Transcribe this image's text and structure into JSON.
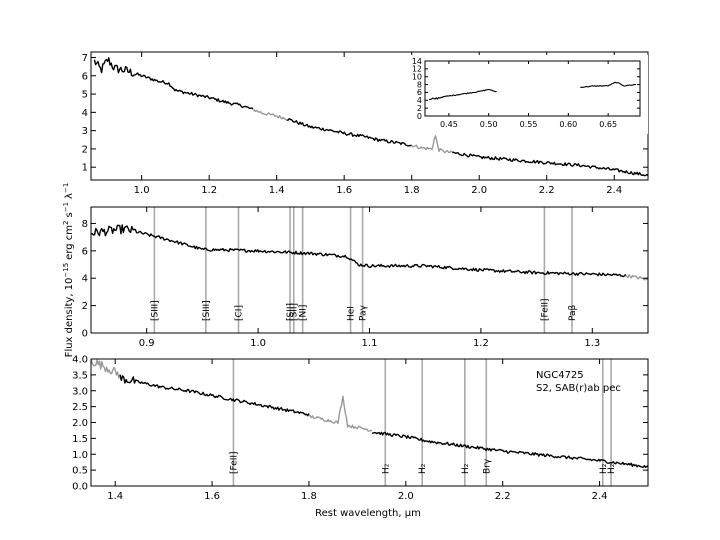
{
  "figure": {
    "ylabel": "Flux density, 10",
    "ylabel_exp": "−15",
    "ylabel_units": "erg  cm",
    "ylabel_units_exp": "2",
    "ylabel_units_s": "s",
    "ylabel_units_s_exp": "−1",
    "ylabel_units_lam": "λ",
    "ylabel_units_lam_exp": "−1",
    "xlabel": "Rest wavelength, μm",
    "galaxy_name": "NGC4725",
    "galaxy_type": "S2,  SAB(r)ab pec"
  },
  "colors": {
    "spectrum": "#000000",
    "gap": "#999999",
    "line_marker": "#aaaaaa"
  },
  "chart_data": [
    {
      "id": "panel-top",
      "type": "line",
      "xlim": [
        0.85,
        2.5
      ],
      "ylim": [
        0.3,
        7.3
      ],
      "xticks": [
        1.0,
        1.2,
        1.4,
        1.6,
        1.8,
        2.0,
        2.2,
        2.4
      ],
      "xtick_labels": [
        "1.0",
        "1.2",
        "1.4",
        "1.6",
        "1.8",
        "2.0",
        "2.2",
        "2.4"
      ],
      "yticks": [
        1,
        2,
        3,
        4,
        5,
        6,
        7
      ],
      "ytick_labels": [
        "1",
        "2",
        "3",
        "4",
        "5",
        "6",
        "7"
      ],
      "series": [
        {
          "color": "black",
          "x": [
            0.86,
            0.88,
            0.9,
            0.92,
            0.95,
            1.0,
            1.05,
            1.08,
            1.1,
            1.15,
            1.2,
            1.25,
            1.3,
            1.33
          ],
          "y": [
            6.8,
            6.3,
            6.9,
            6.4,
            6.3,
            6.0,
            5.7,
            5.6,
            5.2,
            5.0,
            4.8,
            4.55,
            4.35,
            4.15
          ]
        },
        {
          "color": "gray",
          "x": [
            1.33,
            1.36,
            1.4,
            1.43
          ],
          "y": [
            4.15,
            3.95,
            3.8,
            3.65
          ]
        },
        {
          "color": "black",
          "x": [
            1.43,
            1.5,
            1.55,
            1.6,
            1.65,
            1.7,
            1.75,
            1.8
          ],
          "y": [
            3.65,
            3.2,
            3.05,
            2.85,
            2.7,
            2.5,
            2.35,
            2.2
          ]
        },
        {
          "color": "gray",
          "x": [
            1.8,
            1.83,
            1.86,
            1.87,
            1.88,
            1.9,
            1.92
          ],
          "y": [
            2.2,
            2.05,
            2.0,
            2.75,
            1.95,
            1.85,
            1.8
          ]
        },
        {
          "color": "black",
          "x": [
            1.92,
            2.0,
            2.1,
            2.2,
            2.3,
            2.4,
            2.45,
            2.5
          ],
          "y": [
            1.8,
            1.55,
            1.4,
            1.25,
            1.1,
            0.85,
            0.7,
            0.55
          ]
        }
      ]
    },
    {
      "id": "panel-inset",
      "type": "line",
      "xlim": [
        0.42,
        0.69
      ],
      "ylim": [
        0,
        14
      ],
      "xticks": [
        0.45,
        0.5,
        0.55,
        0.6,
        0.65
      ],
      "xtick_labels": [
        "0.45",
        "0.50",
        "0.55",
        "0.60",
        "0.65"
      ],
      "yticks": [
        0,
        2,
        4,
        6,
        8,
        10,
        12,
        14
      ],
      "ytick_labels": [
        "0",
        "2",
        "4",
        "6",
        "8",
        "10",
        "12",
        "14"
      ],
      "series": [
        {
          "color": "black",
          "x": [
            0.425,
            0.44,
            0.46,
            0.48,
            0.49,
            0.5,
            0.505,
            0.51
          ],
          "y": [
            4.0,
            4.8,
            5.4,
            6.0,
            6.3,
            6.8,
            6.4,
            6.2
          ]
        },
        {
          "color": "black",
          "x": [
            0.615,
            0.63,
            0.65,
            0.66,
            0.67,
            0.685
          ],
          "y": [
            7.3,
            7.6,
            7.7,
            8.6,
            7.7,
            8.0
          ]
        }
      ]
    },
    {
      "id": "panel-middle",
      "type": "line",
      "xlim": [
        0.85,
        1.35
      ],
      "ylim": [
        0,
        9.2
      ],
      "xticks": [
        0.9,
        1.0,
        1.1,
        1.2,
        1.3
      ],
      "xtick_labels": [
        "0.9",
        "1.0",
        "1.1",
        "1.2",
        "1.3"
      ],
      "yticks": [
        0,
        2,
        4,
        6,
        8
      ],
      "ytick_labels": [
        "0",
        "2",
        "4",
        "6",
        "8"
      ],
      "series": [
        {
          "color": "black",
          "x": [
            0.85,
            0.87,
            0.88,
            0.9,
            0.92,
            0.95,
            1.0,
            1.05,
            1.08,
            1.09,
            1.1,
            1.15,
            1.2,
            1.25,
            1.3,
            1.33
          ],
          "y": [
            7.3,
            7.5,
            7.6,
            7.2,
            6.8,
            6.1,
            6.0,
            5.8,
            5.6,
            5.0,
            4.9,
            4.9,
            4.6,
            4.4,
            4.3,
            4.2
          ]
        },
        {
          "color": "gray",
          "x": [
            1.33,
            1.35
          ],
          "y": [
            4.2,
            3.9
          ]
        }
      ],
      "lines": [
        {
          "x": 0.9069,
          "label": "[SIII]"
        },
        {
          "x": 0.9531,
          "label": "[SIII]"
        },
        {
          "x": 0.9824,
          "label": "[CI]"
        },
        {
          "x": 1.0287,
          "label": "[SII]"
        },
        {
          "x": 1.032,
          "label": "[SII]"
        },
        {
          "x": 1.04,
          "label": "[NI]"
        },
        {
          "x": 1.083,
          "label": "HeI"
        },
        {
          "x": 1.0938,
          "label": "Paγ"
        },
        {
          "x": 1.257,
          "label": "[FeII]"
        },
        {
          "x": 1.2818,
          "label": "Paβ"
        }
      ]
    },
    {
      "id": "panel-bottom",
      "type": "line",
      "xlim": [
        1.35,
        2.5
      ],
      "ylim": [
        0,
        4.0
      ],
      "xticks": [
        1.4,
        1.6,
        1.8,
        2.0,
        2.2,
        2.4
      ],
      "xtick_labels": [
        "1.4",
        "1.6",
        "1.8",
        "2.0",
        "2.2",
        "2.4"
      ],
      "yticks": [
        0.0,
        0.5,
        1.0,
        1.5,
        2.0,
        2.5,
        3.0,
        3.5,
        4.0
      ],
      "ytick_labels": [
        "0.0",
        "0.5",
        "1.0",
        "1.5",
        "2.0",
        "2.5",
        "3.0",
        "3.5",
        "4.0"
      ],
      "series": [
        {
          "color": "gray",
          "x": [
            1.35,
            1.38,
            1.41
          ],
          "y": [
            3.95,
            3.75,
            3.5
          ]
        },
        {
          "color": "black",
          "x": [
            1.41,
            1.5,
            1.55,
            1.6,
            1.65,
            1.7,
            1.75,
            1.8
          ],
          "y": [
            3.4,
            3.1,
            3.0,
            2.85,
            2.7,
            2.55,
            2.4,
            2.25
          ]
        },
        {
          "color": "gray",
          "x": [
            1.8,
            1.83,
            1.86,
            1.87,
            1.88,
            1.9,
            1.93
          ],
          "y": [
            2.2,
            2.1,
            2.0,
            2.8,
            1.9,
            1.85,
            1.75
          ]
        },
        {
          "color": "black",
          "x": [
            1.93,
            2.0,
            2.05,
            2.1,
            2.2,
            2.3,
            2.4,
            2.45,
            2.5
          ],
          "y": [
            1.7,
            1.55,
            1.4,
            1.3,
            1.1,
            0.95,
            0.8,
            0.7,
            0.6
          ]
        }
      ],
      "lines": [
        {
          "x": 1.644,
          "label": "[FeII]"
        },
        {
          "x": 1.9576,
          "label": "H₂"
        },
        {
          "x": 2.0338,
          "label": "H₂"
        },
        {
          "x": 2.1218,
          "label": "H₂"
        },
        {
          "x": 2.1661,
          "label": "Brγ"
        },
        {
          "x": 2.4066,
          "label": "H₂"
        },
        {
          "x": 2.4237,
          "label": "H₂"
        }
      ]
    }
  ]
}
